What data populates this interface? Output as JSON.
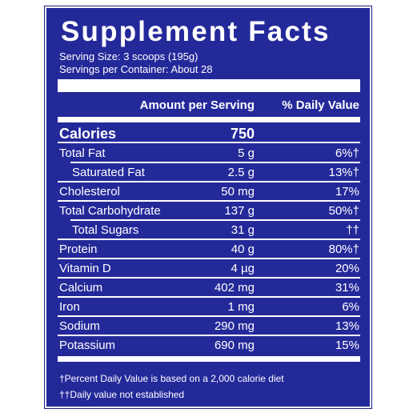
{
  "title": "Supplement Facts",
  "serving_size": "Serving Size: 3 scoops (195g)",
  "servings_per_container": "Servings per Container: About 28",
  "header": {
    "amount": "Amount per Serving",
    "daily_value": "% Daily Value"
  },
  "calories": {
    "label": "Calories",
    "amount": "750"
  },
  "rows": [
    {
      "name": "Total Fat",
      "amount": "5 g",
      "daily_value": "6%†",
      "sub": [
        {
          "name": "Saturated Fat",
          "amount": "2.5 g",
          "daily_value": "13%†"
        }
      ]
    },
    {
      "name": "Cholesterol",
      "amount": "50 mg",
      "daily_value": "17%"
    },
    {
      "name": "Total Carbohydrate",
      "amount": "137 g",
      "daily_value": "50%†",
      "sub": [
        {
          "name": "Total Sugars",
          "amount": "31 g",
          "daily_value": "††"
        }
      ]
    },
    {
      "name": "Protein",
      "amount": "40 g",
      "daily_value": "80%†"
    },
    {
      "name": "Vitamin D",
      "amount": "4 µg",
      "daily_value": "20%"
    },
    {
      "name": "Calcium",
      "amount": "402 mg",
      "daily_value": "31%"
    },
    {
      "name": "Iron",
      "amount": "1 mg",
      "daily_value": "6%"
    },
    {
      "name": "Sodium",
      "amount": "290 mg",
      "daily_value": "13%"
    },
    {
      "name": "Potassium",
      "amount": "690 mg",
      "daily_value": "15%"
    }
  ],
  "footnotes": [
    "†Percent Daily Value is based on a 2,000 calorie diet",
    "††Daily value not established"
  ]
}
